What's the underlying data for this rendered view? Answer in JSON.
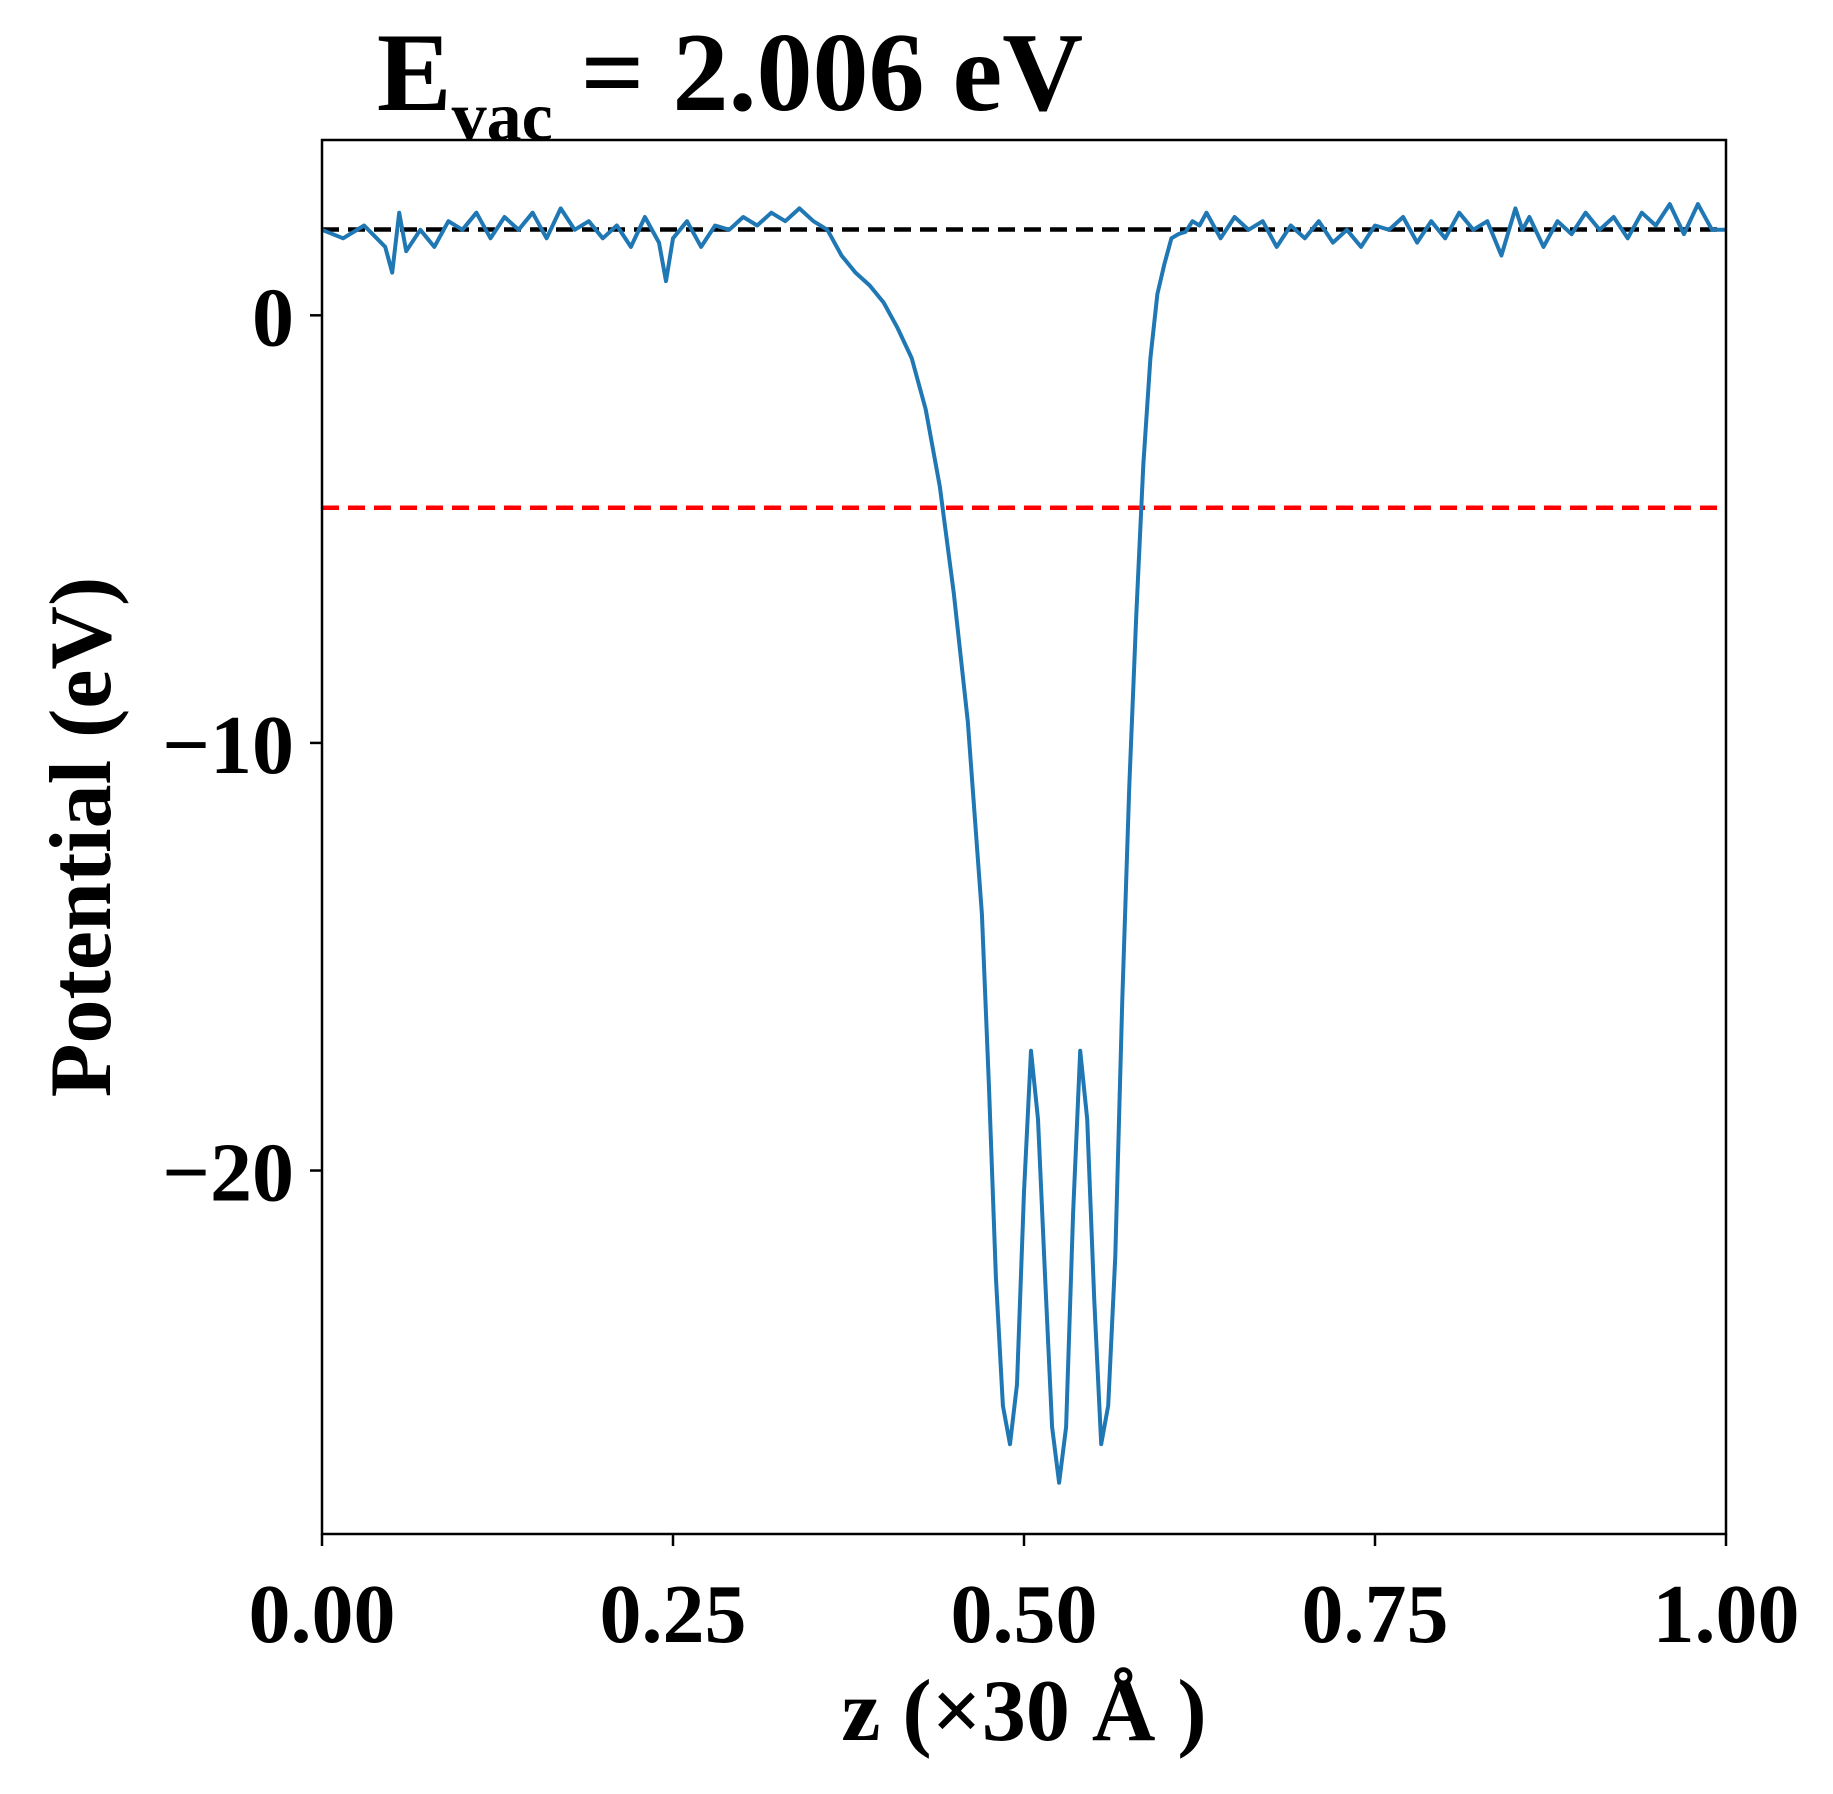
{
  "chart_data": {
    "type": "line",
    "title": {
      "prefix": "E",
      "subscript": "vac",
      "suffix": " = 2.006 eV"
    },
    "xlabel": "z (×30 Å )",
    "ylabel": "Potential (eV)",
    "xlim": [
      0,
      1
    ],
    "ylim": [
      -28.5,
      4.1
    ],
    "xticks": [
      0.0,
      0.25,
      0.5,
      0.75,
      1.0
    ],
    "xtick_labels": [
      "0.00",
      "0.25",
      "0.50",
      "0.75",
      "1.00"
    ],
    "yticks": [
      0,
      -10,
      -20
    ],
    "ytick_labels": [
      "0",
      "−10",
      "−20"
    ],
    "grid": false,
    "series": [
      {
        "color": "#1f77b4",
        "x": [
          0.0,
          0.015,
          0.03,
          0.045,
          0.05,
          0.055,
          0.06,
          0.07,
          0.08,
          0.09,
          0.1,
          0.11,
          0.12,
          0.13,
          0.14,
          0.15,
          0.16,
          0.17,
          0.18,
          0.19,
          0.2,
          0.21,
          0.22,
          0.23,
          0.24,
          0.245,
          0.25,
          0.26,
          0.27,
          0.28,
          0.29,
          0.3,
          0.31,
          0.32,
          0.33,
          0.34,
          0.35,
          0.36,
          0.37,
          0.38,
          0.39,
          0.4,
          0.41,
          0.42,
          0.43,
          0.44,
          0.45,
          0.46,
          0.47,
          0.475,
          0.48,
          0.485,
          0.49,
          0.495,
          0.5,
          0.505,
          0.51,
          0.515,
          0.52,
          0.525,
          0.53,
          0.535,
          0.54,
          0.545,
          0.55,
          0.555,
          0.56,
          0.565,
          0.57,
          0.575,
          0.58,
          0.585,
          0.59,
          0.595,
          0.6,
          0.605,
          0.61,
          0.615,
          0.62,
          0.625,
          0.63,
          0.64,
          0.65,
          0.66,
          0.67,
          0.68,
          0.69,
          0.7,
          0.71,
          0.72,
          0.73,
          0.74,
          0.75,
          0.76,
          0.77,
          0.78,
          0.79,
          0.8,
          0.81,
          0.82,
          0.83,
          0.84,
          0.85,
          0.855,
          0.86,
          0.87,
          0.88,
          0.89,
          0.9,
          0.91,
          0.92,
          0.93,
          0.94,
          0.95,
          0.96,
          0.97,
          0.98,
          0.99,
          1.0
        ],
        "y": [
          2.0,
          1.8,
          2.1,
          1.6,
          1.0,
          2.4,
          1.5,
          2.0,
          1.6,
          2.2,
          2.0,
          2.4,
          1.8,
          2.3,
          2.0,
          2.4,
          1.8,
          2.5,
          2.0,
          2.2,
          1.8,
          2.1,
          1.6,
          2.3,
          1.7,
          0.8,
          1.8,
          2.2,
          1.6,
          2.1,
          2.0,
          2.3,
          2.1,
          2.4,
          2.2,
          2.5,
          2.2,
          2.0,
          1.4,
          1.0,
          0.7,
          0.3,
          -0.3,
          -1.0,
          -2.2,
          -4.0,
          -6.5,
          -9.5,
          -14.0,
          -18.0,
          -22.5,
          -25.5,
          -26.4,
          -25.0,
          -20.5,
          -17.2,
          -18.8,
          -22.5,
          -26.0,
          -27.3,
          -26.0,
          -21.0,
          -17.2,
          -18.8,
          -23.0,
          -26.4,
          -25.5,
          -22.0,
          -16.0,
          -11.0,
          -7.0,
          -3.5,
          -1.0,
          0.5,
          1.2,
          1.8,
          1.9,
          1.95,
          2.2,
          2.1,
          2.4,
          1.8,
          2.3,
          2.0,
          2.2,
          1.6,
          2.1,
          1.8,
          2.2,
          1.7,
          2.0,
          1.6,
          2.1,
          2.0,
          2.3,
          1.7,
          2.2,
          1.8,
          2.4,
          2.0,
          2.2,
          1.4,
          2.5,
          2.0,
          2.3,
          1.6,
          2.2,
          1.9,
          2.4,
          2.0,
          2.3,
          1.8,
          2.4,
          2.1,
          2.6,
          1.9,
          2.6,
          2.0,
          2.0
        ],
        "note_y_correction": false
      }
    ],
    "reference_lines": [
      {
        "y": 2.006,
        "color": "#000000",
        "style": "dashed"
      },
      {
        "y": -4.5,
        "color": "#ff0000",
        "style": "dashed"
      }
    ]
  }
}
